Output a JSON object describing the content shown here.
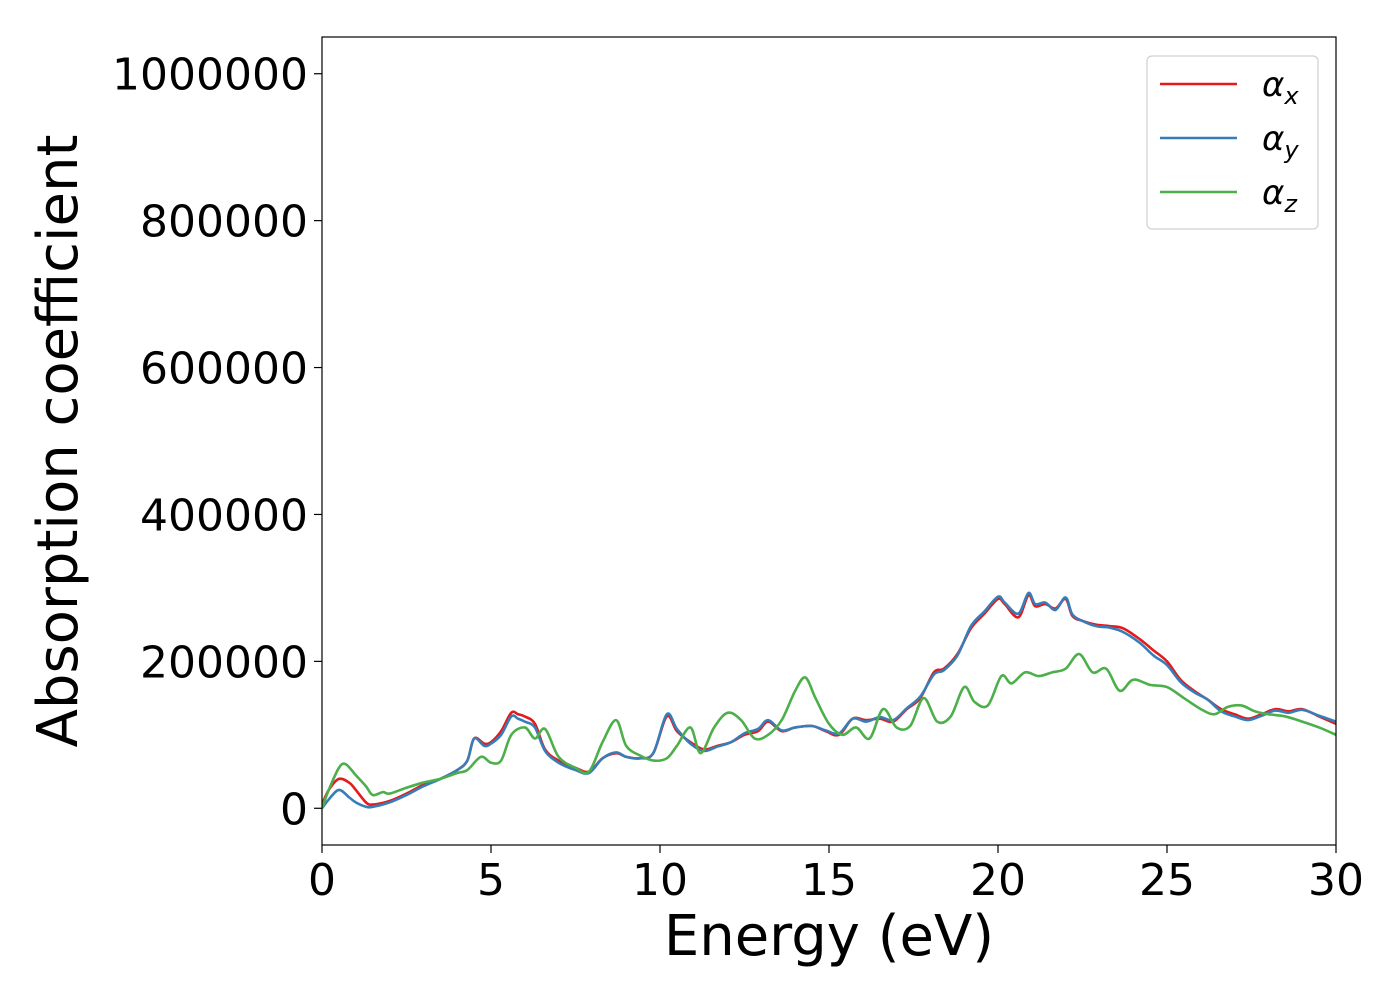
{
  "chart_data": {
    "type": "line",
    "title": "",
    "xlabel": "Energy (eV)",
    "ylabel": "Absorption coefficient",
    "xlim": [
      0,
      30
    ],
    "ylim": [
      -50000,
      1050000
    ],
    "xticks": [
      0,
      5,
      10,
      15,
      20,
      25,
      30
    ],
    "xtick_labels": [
      "0",
      "5",
      "10",
      "15",
      "20",
      "25",
      "30"
    ],
    "yticks": [
      0,
      200000,
      400000,
      600000,
      800000,
      1000000
    ],
    "ytick_labels": [
      "0",
      "200000",
      "400000",
      "600000",
      "800000",
      "1000000"
    ],
    "grid": false,
    "legend_position": "top-right",
    "series": [
      {
        "name": "αx",
        "symbol": "α",
        "subscript": "x",
        "color": "#e41a1c",
        "x": [
          0,
          0.2,
          0.5,
          0.8,
          1.0,
          1.3,
          1.5,
          2.0,
          2.5,
          3.0,
          3.5,
          4.0,
          4.3,
          4.5,
          4.8,
          5.0,
          5.3,
          5.6,
          5.8,
          6.0,
          6.3,
          6.6,
          7.0,
          7.5,
          7.9,
          8.3,
          8.7,
          9.0,
          9.4,
          9.8,
          10.2,
          10.5,
          10.9,
          11.3,
          11.7,
          12.1,
          12.5,
          12.9,
          13.2,
          13.6,
          14.0,
          14.5,
          14.9,
          15.3,
          15.7,
          16.1,
          16.5,
          16.9,
          17.3,
          17.7,
          18.1,
          18.4,
          18.8,
          19.2,
          19.6,
          20.0,
          20.2,
          20.6,
          20.9,
          21.1,
          21.4,
          21.7,
          22.0,
          22.2,
          22.5,
          22.9,
          23.3,
          23.7,
          24.2,
          24.6,
          25.0,
          25.4,
          25.8,
          26.2,
          26.6,
          27.0,
          27.4,
          27.8,
          28.2,
          28.6,
          29.0,
          29.5,
          30.0
        ],
        "y": [
          5000,
          25000,
          40000,
          35000,
          25000,
          8000,
          5000,
          10000,
          20000,
          32000,
          40000,
          52000,
          65000,
          95000,
          88000,
          90000,
          105000,
          130000,
          128000,
          125000,
          115000,
          80000,
          65000,
          55000,
          50000,
          68000,
          75000,
          70000,
          68000,
          75000,
          125000,
          105000,
          90000,
          80000,
          85000,
          90000,
          100000,
          105000,
          118000,
          105000,
          110000,
          112000,
          105000,
          100000,
          122000,
          120000,
          122000,
          118000,
          135000,
          150000,
          185000,
          190000,
          210000,
          245000,
          265000,
          285000,
          278000,
          260000,
          290000,
          275000,
          278000,
          272000,
          285000,
          262000,
          255000,
          250000,
          248000,
          245000,
          230000,
          215000,
          200000,
          175000,
          160000,
          148000,
          135000,
          128000,
          122000,
          128000,
          135000,
          132000,
          135000,
          125000,
          115000
        ]
      },
      {
        "name": "αy",
        "symbol": "α",
        "subscript": "y",
        "color": "#377eb8",
        "x": [
          0,
          0.2,
          0.5,
          0.8,
          1.0,
          1.3,
          1.5,
          2.0,
          2.5,
          3.0,
          3.5,
          4.0,
          4.3,
          4.5,
          4.8,
          5.0,
          5.3,
          5.6,
          5.8,
          6.0,
          6.3,
          6.6,
          7.0,
          7.5,
          7.9,
          8.3,
          8.7,
          9.0,
          9.4,
          9.8,
          10.2,
          10.5,
          10.9,
          11.3,
          11.7,
          12.1,
          12.5,
          12.9,
          13.2,
          13.6,
          14.0,
          14.5,
          14.9,
          15.3,
          15.7,
          16.1,
          16.5,
          16.9,
          17.3,
          17.7,
          18.1,
          18.4,
          18.8,
          19.2,
          19.6,
          20.0,
          20.2,
          20.6,
          20.9,
          21.1,
          21.4,
          21.7,
          22.0,
          22.2,
          22.5,
          22.9,
          23.3,
          23.7,
          24.2,
          24.6,
          25.0,
          25.4,
          25.8,
          26.2,
          26.6,
          27.0,
          27.4,
          27.8,
          28.2,
          28.6,
          29.0,
          29.5,
          30.0
        ],
        "y": [
          0,
          12000,
          25000,
          15000,
          8000,
          2000,
          2000,
          8000,
          18000,
          30000,
          40000,
          52000,
          65000,
          95000,
          85000,
          88000,
          100000,
          125000,
          122000,
          118000,
          110000,
          78000,
          62000,
          52000,
          48000,
          68000,
          76000,
          70000,
          68000,
          75000,
          128000,
          108000,
          88000,
          78000,
          84000,
          90000,
          102000,
          108000,
          120000,
          106000,
          110000,
          112000,
          106000,
          102000,
          122000,
          118000,
          124000,
          120000,
          136000,
          152000,
          182000,
          188000,
          208000,
          248000,
          268000,
          288000,
          280000,
          265000,
          293000,
          278000,
          280000,
          270000,
          287000,
          264000,
          255000,
          248000,
          246000,
          240000,
          225000,
          208000,
          195000,
          172000,
          158000,
          148000,
          132000,
          125000,
          120000,
          126000,
          133000,
          130000,
          134000,
          126000,
          118000
        ]
      },
      {
        "name": "αz",
        "symbol": "α",
        "subscript": "z",
        "color": "#4daf4a",
        "x": [
          0,
          0.2,
          0.5,
          0.7,
          1.0,
          1.3,
          1.5,
          1.8,
          2.0,
          2.5,
          3.0,
          3.5,
          4.0,
          4.3,
          4.7,
          5.0,
          5.3,
          5.6,
          6.0,
          6.3,
          6.6,
          7.0,
          7.5,
          7.9,
          8.3,
          8.7,
          9.0,
          9.4,
          9.8,
          10.2,
          10.5,
          10.9,
          11.2,
          11.6,
          12.0,
          12.4,
          12.8,
          13.2,
          13.6,
          14.0,
          14.3,
          14.6,
          15.0,
          15.4,
          15.8,
          16.2,
          16.6,
          17.0,
          17.4,
          17.8,
          18.2,
          18.6,
          19.0,
          19.3,
          19.7,
          20.1,
          20.4,
          20.8,
          21.2,
          21.6,
          22.0,
          22.4,
          22.8,
          23.2,
          23.6,
          24.0,
          24.5,
          25.0,
          25.5,
          26.0,
          26.4,
          26.8,
          27.2,
          27.6,
          28.0,
          28.5,
          29.0,
          29.5,
          30.0
        ],
        "y": [
          0,
          25000,
          55000,
          60000,
          45000,
          30000,
          18000,
          22000,
          20000,
          28000,
          35000,
          40000,
          48000,
          52000,
          70000,
          62000,
          65000,
          100000,
          110000,
          95000,
          108000,
          70000,
          55000,
          50000,
          90000,
          120000,
          85000,
          72000,
          65000,
          68000,
          85000,
          110000,
          75000,
          110000,
          130000,
          120000,
          95000,
          100000,
          120000,
          160000,
          178000,
          150000,
          115000,
          100000,
          110000,
          95000,
          135000,
          110000,
          112000,
          150000,
          118000,
          125000,
          165000,
          145000,
          140000,
          180000,
          170000,
          185000,
          180000,
          185000,
          190000,
          210000,
          185000,
          190000,
          160000,
          175000,
          168000,
          165000,
          150000,
          135000,
          128000,
          138000,
          140000,
          132000,
          128000,
          125000,
          118000,
          110000,
          100000
        ]
      }
    ]
  }
}
